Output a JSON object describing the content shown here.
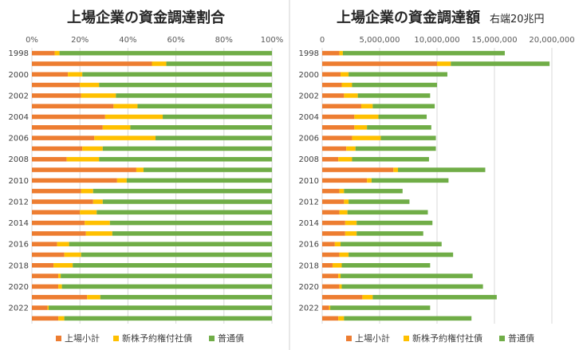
{
  "colors": {
    "orange": "#ED7D31",
    "yellow": "#FFC000",
    "green": "#70AD47",
    "grid": "#D9D9D9",
    "divider": "#D0D0D0"
  },
  "legend_labels": [
    "上場小計",
    "新株予約権付社債",
    "普通債"
  ],
  "chart_data": [
    {
      "type": "bar",
      "orientation": "horizontal",
      "stacked": "percent",
      "title": "上場企業の資金調達割合",
      "xlim": [
        0,
        100
      ],
      "x_ticks": [
        "0%",
        "20%",
        "40%",
        "60%",
        "80%",
        "100%"
      ],
      "categories": [
        "1998",
        "",
        "2000",
        "",
        "2002",
        "",
        "2004",
        "",
        "2006",
        "",
        "2008",
        "",
        "2010",
        "",
        "2012",
        "",
        "2014",
        "",
        "2016",
        "",
        "2018",
        "",
        "2020",
        "",
        "2022",
        ""
      ],
      "series": [
        {
          "name": "上場小計",
          "values": [
            9.5,
            50,
            15,
            20,
            20.5,
            34,
            30.5,
            29.5,
            26,
            21,
            14.5,
            43.5,
            35.5,
            20.5,
            25.5,
            20,
            22,
            22.5,
            10.5,
            13.5,
            9,
            11,
            11,
            23,
            6.5,
            11
          ]
        },
        {
          "name": "新株予約権付社債",
          "values": [
            2,
            6,
            6,
            8,
            14.5,
            10,
            24,
            11.5,
            25.5,
            8.5,
            13.5,
            3,
            4,
            5,
            4,
            7,
            10.5,
            11,
            5,
            7,
            8,
            1,
            1.5,
            5.5,
            0.5,
            2.5
          ]
        },
        {
          "name": "普通債",
          "values": [
            88.5,
            44,
            79,
            72,
            65,
            56,
            45.5,
            59,
            48.5,
            70.5,
            72,
            53.5,
            60.5,
            74.5,
            70.5,
            73,
            67.5,
            66.5,
            84.5,
            79.5,
            83,
            88,
            87.5,
            71.5,
            93,
            86.5
          ]
        }
      ],
      "legend": "bottom",
      "grid": true
    },
    {
      "type": "bar",
      "orientation": "horizontal",
      "stacked": "normal",
      "title": "上場企業の資金調達額",
      "subtitle": "右端20兆円",
      "xlim": [
        0,
        20000000
      ],
      "x_ticks": [
        "0",
        "5,000,000",
        "10,000,000",
        "15,000,000",
        "20,000,000"
      ],
      "categories": [
        "1998",
        "",
        "2000",
        "",
        "2002",
        "",
        "2004",
        "",
        "2006",
        "",
        "2008",
        "",
        "2010",
        "",
        "2012",
        "",
        "2014",
        "",
        "2016",
        "",
        "2018",
        "",
        "2020",
        "",
        "2022",
        ""
      ],
      "series": [
        {
          "name": "上場小計",
          "values": [
            1500000,
            10000000,
            1600000,
            1700000,
            1900000,
            3400000,
            2800000,
            2800000,
            2600000,
            2100000,
            1400000,
            6200000,
            3900000,
            1500000,
            1900000,
            1500000,
            2000000,
            2000000,
            1100000,
            1500000,
            900000,
            1400000,
            1500000,
            3500000,
            600000,
            1400000
          ]
        },
        {
          "name": "新株予約権付社債",
          "values": [
            300000,
            1200000,
            700000,
            900000,
            1200000,
            1000000,
            2100000,
            1100000,
            2500000,
            800000,
            1200000,
            400000,
            400000,
            400000,
            400000,
            700000,
            1000000,
            1000000,
            500000,
            800000,
            800000,
            200000,
            200000,
            900000,
            100000,
            500000
          ]
        },
        {
          "name": "普通債",
          "values": [
            14100000,
            8600000,
            8600000,
            7400000,
            6300000,
            5400000,
            4200000,
            5600000,
            4800000,
            7000000,
            6700000,
            7600000,
            6700000,
            5100000,
            5300000,
            7000000,
            6600000,
            5800000,
            8800000,
            9100000,
            7700000,
            11500000,
            12300000,
            10800000,
            8700000,
            11100000
          ]
        }
      ],
      "legend": "bottom",
      "grid": true
    }
  ]
}
